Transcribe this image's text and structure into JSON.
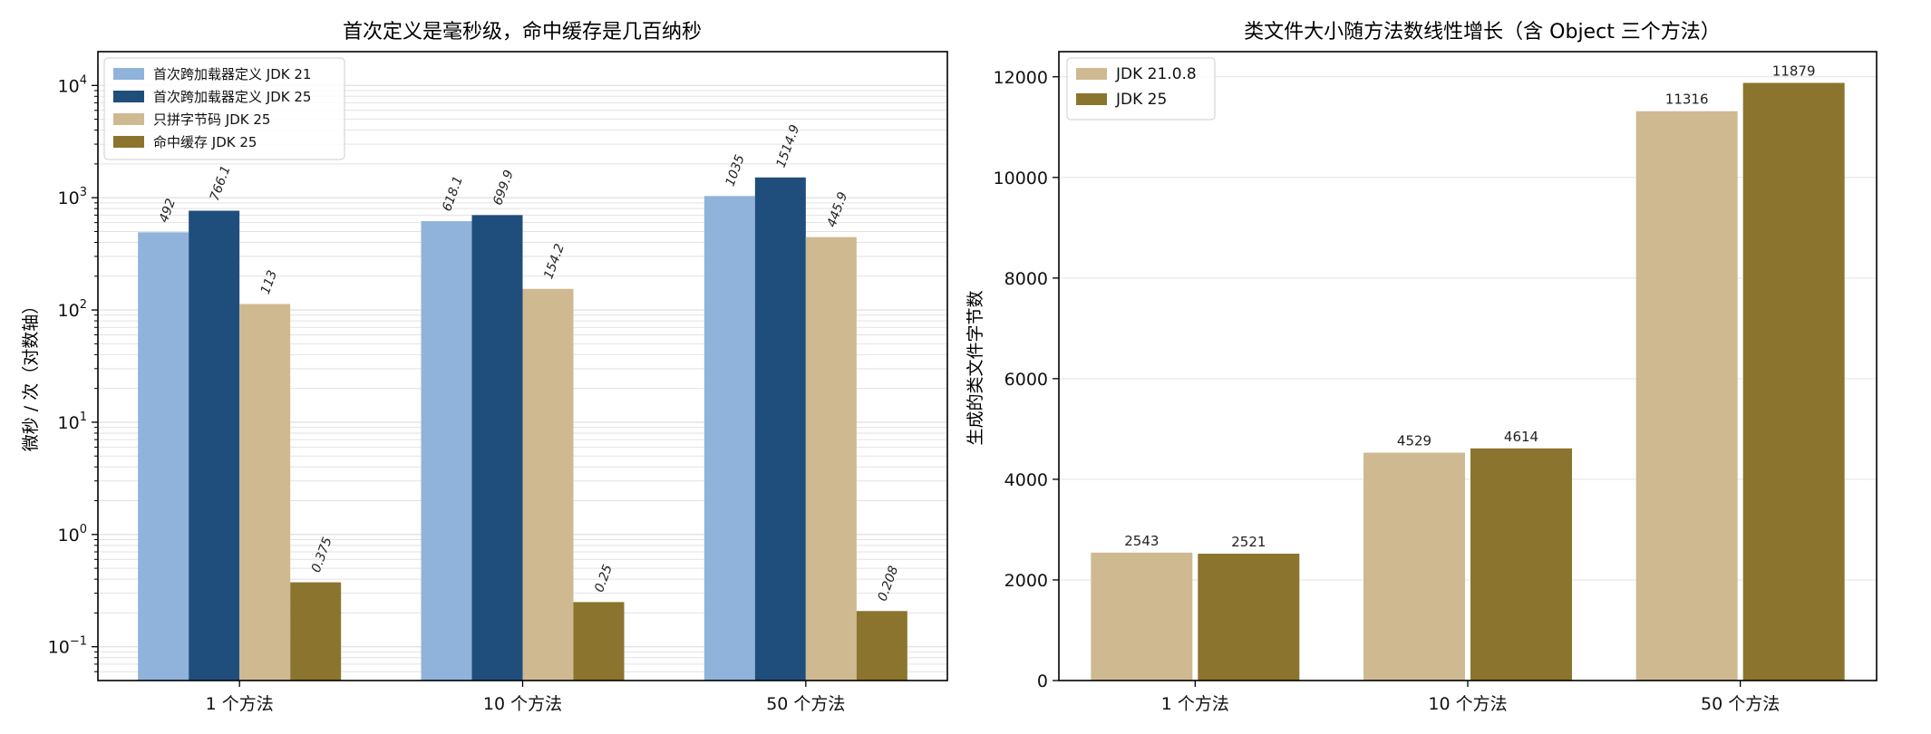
{
  "chart_data": [
    {
      "type": "bar",
      "title": "首次定义是毫秒级，命中缓存是几百纳秒",
      "xlabel": "",
      "ylabel": "微秒 / 次（对数轴）",
      "yscale": "log",
      "ylim": [
        0.05,
        20000
      ],
      "yticks": [
        0.1,
        1,
        10,
        100,
        1000,
        10000
      ],
      "ytick_labels": [
        {
          "base": "10",
          "exp": "−1"
        },
        {
          "base": "10",
          "exp": "0"
        },
        {
          "base": "10",
          "exp": "1"
        },
        {
          "base": "10",
          "exp": "2"
        },
        {
          "base": "10",
          "exp": "3"
        },
        {
          "base": "10",
          "exp": "4"
        }
      ],
      "grid": true,
      "legend_position": "top-left",
      "categories": [
        "1 个方法",
        "10 个方法",
        "50 个方法"
      ],
      "series": [
        {
          "name": "首次跨加载器定义 JDK 21",
          "color": "#8fb3da",
          "values": [
            492,
            618.1,
            1035
          ],
          "labels": [
            "492",
            "618.1",
            "1035"
          ]
        },
        {
          "name": "首次跨加载器定义 JDK 25",
          "color": "#1f4e7c",
          "values": [
            766.1,
            699.9,
            1514.9
          ],
          "labels": [
            "766.1",
            "699.9",
            "1514.9"
          ]
        },
        {
          "name": "只拼字节码 JDK 25",
          "color": "#cfb991",
          "values": [
            113,
            154.2,
            445.9
          ],
          "labels": [
            "113",
            "154.2",
            "445.9"
          ]
        },
        {
          "name": "命中缓存 JDK 25",
          "color": "#8b742d",
          "values": [
            0.375,
            0.25,
            0.208
          ],
          "labels": [
            "0.375",
            "0.25",
            "0.208"
          ]
        }
      ]
    },
    {
      "type": "bar",
      "title": "类文件大小随方法数线性增长（含 Object 三个方法）",
      "xlabel": "",
      "ylabel": "生成的类文件字节数",
      "yscale": "linear",
      "ylim": [
        0,
        12500
      ],
      "yticks": [
        0,
        2000,
        4000,
        6000,
        8000,
        10000,
        12000
      ],
      "ytick_labels": [
        "0",
        "2000",
        "4000",
        "6000",
        "8000",
        "10000",
        "12000"
      ],
      "grid": true,
      "legend_position": "top-left",
      "categories": [
        "1 个方法",
        "10 个方法",
        "50 个方法"
      ],
      "series": [
        {
          "name": "JDK 21.0.8",
          "color": "#cfb991",
          "values": [
            2543,
            4529,
            11316
          ],
          "labels": [
            "2543",
            "4529",
            "11316"
          ]
        },
        {
          "name": "JDK 25",
          "color": "#8b742d",
          "values": [
            2521,
            4614,
            11879
          ],
          "labels": [
            "2521",
            "4614",
            "11879"
          ]
        }
      ]
    }
  ]
}
